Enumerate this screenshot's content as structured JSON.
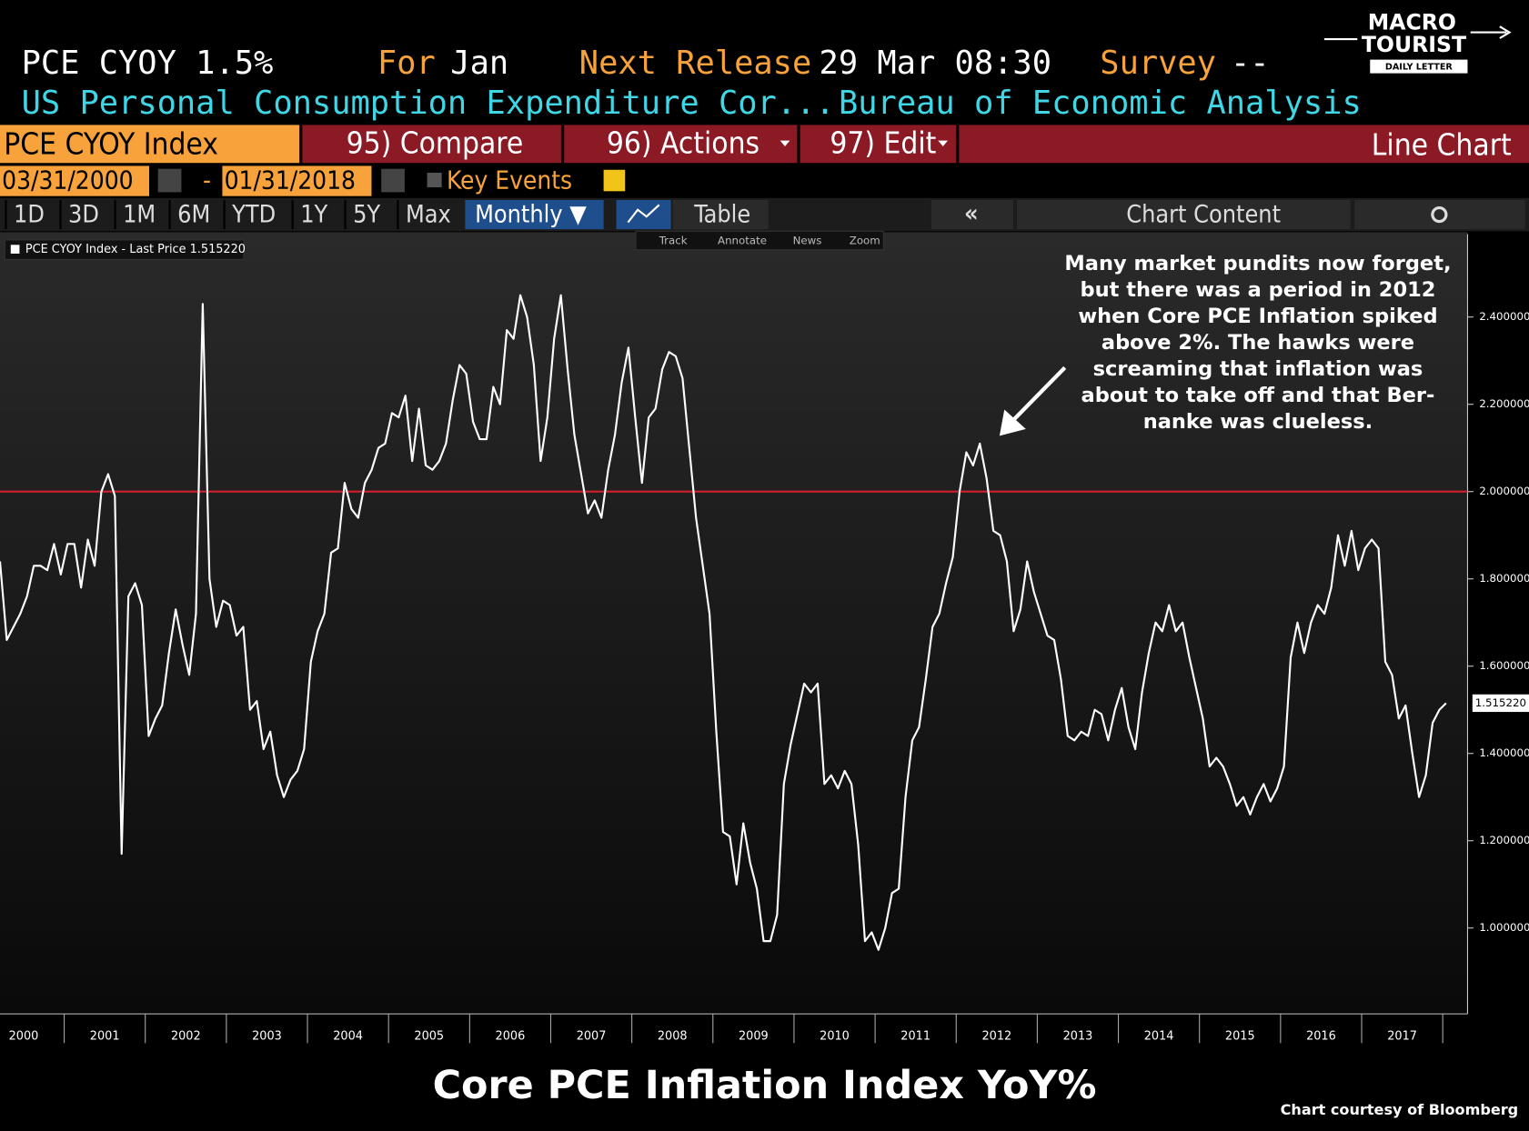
{
  "header": {
    "ticker": "PCE CYOY 1.5%",
    "for_label": "For",
    "for_value": "Jan",
    "next_release_label": "Next Release",
    "next_release_value": "29 Mar 08:30",
    "survey_label": "Survey",
    "survey_value": "--",
    "security_name": "US Personal Consumption Expenditure Cor...",
    "source": "Bureau of Economic Analysis"
  },
  "toolbar": {
    "security": "PCE CYOY Index",
    "buttons": [
      "95) Compare",
      "96) Actions",
      "97) Edit"
    ],
    "chart_type": "Line Chart"
  },
  "date_range": {
    "start": "03/31/2000",
    "separator": "-",
    "end": "01/31/2018",
    "key_events": "Key Events"
  },
  "periods": [
    "1D",
    "3D",
    "1M",
    "6M",
    "YTD",
    "1Y",
    "5Y",
    "Max"
  ],
  "frequency": "Monthly ▼",
  "table": "Table",
  "chart_content": "Chart Content",
  "tools": [
    "Track",
    "Annotate",
    "News",
    "Zoom"
  ],
  "logo": {
    "line1": "MACRO",
    "line2": "TOURIST",
    "tagline": "DAILY LETTER"
  },
  "chart_data": {
    "type": "line",
    "title": "Core PCE Inflation Index YoY%",
    "credit": "Chart courtesy of Bloomberg",
    "annotation": [
      "Many market pundits now forget,",
      "but there was a period in 2012",
      "when Core PCE Inflation spiked",
      "above 2%.  The hawks were",
      "screaming that inflation was",
      "about to take off and that Ber-",
      "nanke was clueless."
    ],
    "series": [
      {
        "name": "PCE CYOY Index - Last Price 1.515220",
        "color": "#ffffff",
        "values": [
          1.84,
          1.66,
          1.69,
          1.72,
          1.76,
          1.83,
          1.83,
          1.82,
          1.88,
          1.81,
          1.88,
          1.88,
          1.78,
          1.89,
          1.83,
          2.0,
          2.04,
          1.99,
          1.17,
          1.76,
          1.79,
          1.74,
          1.44,
          1.48,
          1.51,
          1.63,
          1.73,
          1.65,
          1.58,
          1.72,
          2.43,
          1.8,
          1.69,
          1.75,
          1.74,
          1.67,
          1.69,
          1.5,
          1.52,
          1.41,
          1.45,
          1.35,
          1.3,
          1.34,
          1.36,
          1.41,
          1.61,
          1.68,
          1.72,
          1.86,
          1.87,
          2.02,
          1.96,
          1.94,
          2.02,
          2.05,
          2.1,
          2.11,
          2.18,
          2.17,
          2.22,
          2.07,
          2.19,
          2.06,
          2.05,
          2.07,
          2.11,
          2.21,
          2.29,
          2.27,
          2.16,
          2.12,
          2.12,
          2.24,
          2.2,
          2.37,
          2.35,
          2.45,
          2.4,
          2.29,
          2.07,
          2.17,
          2.35,
          2.45,
          2.28,
          2.13,
          2.04,
          1.95,
          1.98,
          1.94,
          2.05,
          2.13,
          2.25,
          2.33,
          2.17,
          2.02,
          2.17,
          2.19,
          2.28,
          2.32,
          2.31,
          2.26,
          2.1,
          1.94,
          1.83,
          1.72,
          1.45,
          1.22,
          1.21,
          1.1,
          1.24,
          1.15,
          1.09,
          0.97,
          0.97,
          1.03,
          1.33,
          1.42,
          1.49,
          1.56,
          1.54,
          1.56,
          1.33,
          1.35,
          1.32,
          1.36,
          1.33,
          1.19,
          0.97,
          0.99,
          0.95,
          1.0,
          1.08,
          1.09,
          1.3,
          1.43,
          1.46,
          1.57,
          1.69,
          1.72,
          1.79,
          1.85,
          2.0,
          2.09,
          2.06,
          2.11,
          2.03,
          1.91,
          1.9,
          1.84,
          1.68,
          1.73,
          1.84,
          1.77,
          1.72,
          1.67,
          1.66,
          1.57,
          1.44,
          1.43,
          1.45,
          1.44,
          1.5,
          1.49,
          1.43,
          1.5,
          1.55,
          1.46,
          1.41,
          1.54,
          1.63,
          1.7,
          1.68,
          1.74,
          1.68,
          1.7,
          1.62,
          1.55,
          1.48,
          1.37,
          1.39,
          1.37,
          1.33,
          1.28,
          1.3,
          1.26,
          1.3,
          1.33,
          1.29,
          1.32,
          1.37,
          1.62,
          1.7,
          1.63,
          1.7,
          1.74,
          1.72,
          1.78,
          1.9,
          1.83,
          1.91,
          1.82,
          1.87,
          1.89,
          1.87,
          1.61,
          1.58,
          1.48,
          1.51,
          1.4,
          1.3,
          1.35,
          1.47,
          1.5,
          1.51522
        ]
      }
    ],
    "last_value_label": "1.515220",
    "reference_line": {
      "value": 2.0,
      "color": "#d3202e"
    },
    "ylim": [
      0.81,
      2.59
    ],
    "yticks": [
      {
        "value": 1.0,
        "label": "1.000000"
      },
      {
        "value": 1.2,
        "label": "1.200000"
      },
      {
        "value": 1.4,
        "label": "1.400000"
      },
      {
        "value": 1.6,
        "label": "1.600000"
      },
      {
        "value": 1.8,
        "label": "1.800000"
      },
      {
        "value": 2.0,
        "label": "2.000000"
      },
      {
        "value": 2.2,
        "label": "2.200000"
      },
      {
        "value": 2.4,
        "label": "2.400000"
      }
    ],
    "xticks": [
      2000,
      2001,
      2002,
      2003,
      2004,
      2005,
      2006,
      2007,
      2008,
      2009,
      2010,
      2011,
      2012,
      2013,
      2014,
      2015,
      2016,
      2017
    ]
  }
}
